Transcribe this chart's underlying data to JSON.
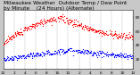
{
  "title": "Milwaukee Weather  Outdoor Temp / Dew Point  by Minute  (24 Hours) (Alternate)",
  "title_line1": "Milwaukee Weather  Outdoor Temp / Dew Point",
  "title_line2": "by Minute",
  "title_line3": "(24 Hours) (Alternate)",
  "bg_color": "#c8c8c8",
  "plot_bg_color": "#ffffff",
  "temp_color": "#ff0000",
  "dew_color": "#0000ff",
  "grid_color": "#888888",
  "y_ticks": [
    20,
    40,
    60,
    80
  ],
  "ylim": [
    5,
    90
  ],
  "xlim": [
    0,
    1440
  ],
  "x_tick_positions": [
    0,
    120,
    240,
    360,
    480,
    600,
    720,
    840,
    960,
    1080,
    1200,
    1320,
    1440
  ],
  "x_tick_labels": [
    "12",
    "2",
    "4",
    "6",
    "8",
    "10",
    "12",
    "2",
    "4",
    "6",
    "8",
    "10",
    "12"
  ],
  "title_fontsize": 4.2,
  "tick_fontsize": 3.2,
  "dot_size": 0.8,
  "temp_peak": 78,
  "temp_start": 42,
  "temp_end": 52,
  "dew_start": 18,
  "dew_peak": 32,
  "dew_end": 22
}
